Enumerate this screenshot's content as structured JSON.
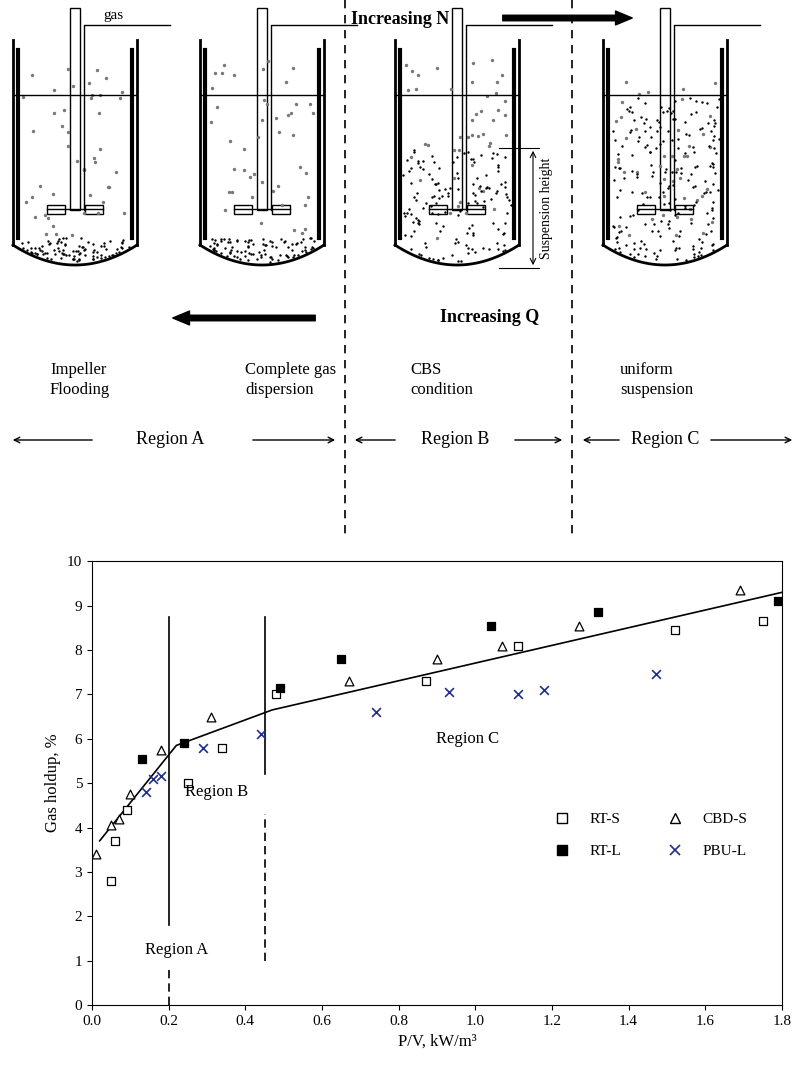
{
  "diagram": {
    "top_arrow": "Increasing N",
    "gas_label": "gas",
    "suspension_label": "Suspension height",
    "middle_arrow": "Increasing Q",
    "stages": [
      "Impeller\nFlooding",
      "Complete gas\ndispersion",
      "CBS\ncondition",
      "uniform\nsuspension"
    ],
    "regions": [
      "Region A",
      "Region B",
      "Region C"
    ]
  },
  "chart_data": {
    "type": "scatter",
    "x_label": "P/V, kW/m³",
    "y_label": "Gas holdup, %",
    "xlim": [
      0,
      1.8
    ],
    "ylim": [
      0,
      10
    ],
    "xticks": [
      {
        "value": 0,
        "label": "0.0"
      },
      0.2,
      0.4,
      0.6,
      0.8,
      {
        "value": 1,
        "label": "1.0"
      },
      1.2,
      1.4,
      1.6,
      1.8
    ],
    "yticks": [
      0,
      1,
      2,
      3,
      4,
      5,
      6,
      7,
      8,
      9,
      10
    ],
    "legend": "lower right",
    "series": [
      {
        "name": "RT-S",
        "color": "#000000",
        "marker": "open_square",
        "x": [
          0.05,
          0.06,
          0.09,
          0.25,
          0.34,
          0.48,
          0.87,
          1.11,
          1.52,
          1.75
        ],
        "values": [
          2.8,
          3.7,
          4.4,
          5.0,
          5.8,
          7.0,
          7.3,
          8.1,
          8.45,
          8.65
        ]
      },
      {
        "name": "RT-L",
        "color": "#000000",
        "marker": "filled_square",
        "x": [
          0.13,
          0.24,
          0.49,
          0.65,
          1.04,
          1.32,
          1.79
        ],
        "values": [
          5.55,
          5.9,
          7.15,
          7.8,
          8.55,
          8.85,
          9.1
        ]
      },
      {
        "name": "CBD-S",
        "color": "#000000",
        "marker": "open_triangle",
        "x": [
          0.01,
          0.05,
          0.07,
          0.1,
          0.18,
          0.31,
          0.67,
          0.9,
          1.07,
          1.27,
          1.69
        ],
        "values": [
          3.4,
          4.05,
          4.2,
          4.75,
          5.75,
          6.5,
          7.3,
          7.8,
          8.1,
          8.55,
          9.35
        ]
      },
      {
        "name": "PBU-L",
        "color": "#1f2f8f",
        "marker": "x",
        "x": [
          0.14,
          0.16,
          0.18,
          0.29,
          0.44,
          0.74,
          0.93,
          1.11,
          1.18,
          1.47
        ],
        "values": [
          4.8,
          5.1,
          5.15,
          5.8,
          6.1,
          6.6,
          7.05,
          7.0,
          7.1,
          7.45
        ]
      }
    ],
    "fit_line": {
      "color": "#000000",
      "x": [
        0.02,
        0.22,
        0.47,
        1.8
      ],
      "values": [
        3.7,
        5.85,
        6.65,
        9.3
      ]
    },
    "region_boundaries": [
      0.2,
      0.45
    ],
    "annotations": [
      "Region A",
      "Region B",
      "Region C"
    ]
  }
}
